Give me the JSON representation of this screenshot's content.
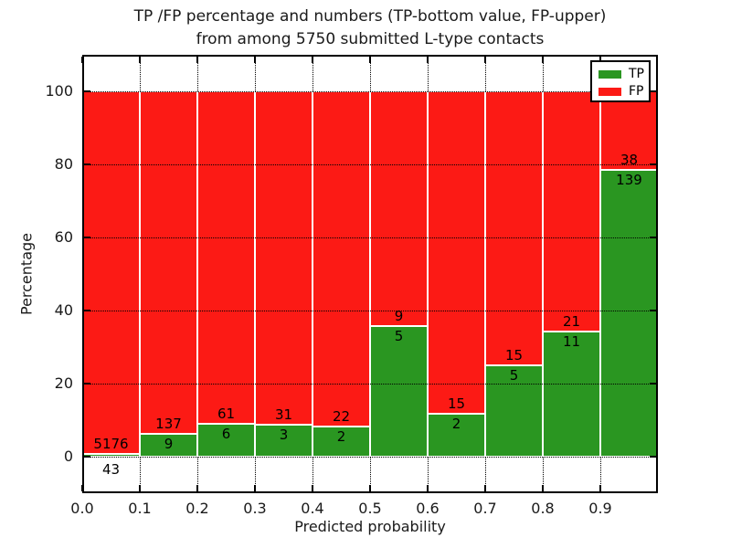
{
  "title": {
    "line1": "TP /FP percentage and numbers (TP-bottom value, FP-upper)",
    "line2": "from among 5750 submitted L-type contacts"
  },
  "axes": {
    "xlabel": "Predicted probability",
    "ylabel": "Percentage",
    "xtick_labels": [
      "0.0",
      "0.1",
      "0.2",
      "0.3",
      "0.4",
      "0.5",
      "0.6",
      "0.7",
      "0.8",
      "0.9"
    ],
    "xtick_values": [
      0.0,
      0.1,
      0.2,
      0.3,
      0.4,
      0.5,
      0.6,
      0.7,
      0.8,
      0.9
    ],
    "ytick_labels": [
      "0",
      "20",
      "40",
      "60",
      "80",
      "100"
    ],
    "ytick_values": [
      0,
      20,
      40,
      60,
      80,
      100
    ],
    "xlim": [
      0.0,
      1.0
    ],
    "ylim": [
      -10,
      110
    ],
    "grid": "dotted"
  },
  "legend": {
    "position": "upper-right",
    "items": [
      {
        "label": "TP",
        "color": "#2a9621"
      },
      {
        "label": "FP",
        "color": "#fc1a15"
      }
    ]
  },
  "colors": {
    "tp_green": "#2a9621",
    "fp_red": "#fc1a15",
    "bar_edge": "#ffffff",
    "text": "#000000"
  },
  "chart_data": {
    "type": "bar",
    "stacked": true,
    "normalized_to_percent": true,
    "title": "TP /FP percentage and numbers (TP-bottom value, FP-upper) from among 5750 submitted L-type contacts",
    "xlabel": "Predicted probability",
    "ylabel": "Percentage",
    "xlim": [
      0.0,
      1.0
    ],
    "ylim": [
      -10,
      110
    ],
    "total_submitted": 5750,
    "bin_width": 0.1,
    "categories": [
      "0.0-0.1",
      "0.1-0.2",
      "0.2-0.3",
      "0.3-0.4",
      "0.4-0.5",
      "0.5-0.6",
      "0.6-0.7",
      "0.7-0.8",
      "0.8-0.9",
      "0.9-1.0"
    ],
    "series": [
      {
        "name": "TP",
        "color": "#2a9621",
        "values": [
          43,
          9,
          6,
          3,
          2,
          5,
          2,
          5,
          11,
          139
        ]
      },
      {
        "name": "FP",
        "color": "#fc1a15",
        "values": [
          5176,
          137,
          61,
          31,
          22,
          9,
          15,
          15,
          21,
          38
        ]
      }
    ],
    "bins": [
      {
        "x_start": 0.0,
        "x_end": 0.1,
        "tp": 43,
        "fp": 5176,
        "tp_percent": 0.82
      },
      {
        "x_start": 0.1,
        "x_end": 0.2,
        "tp": 9,
        "fp": 137,
        "tp_percent": 6.16
      },
      {
        "x_start": 0.2,
        "x_end": 0.3,
        "tp": 6,
        "fp": 61,
        "tp_percent": 8.96
      },
      {
        "x_start": 0.3,
        "x_end": 0.4,
        "tp": 3,
        "fp": 31,
        "tp_percent": 8.82
      },
      {
        "x_start": 0.4,
        "x_end": 0.5,
        "tp": 2,
        "fp": 22,
        "tp_percent": 8.33
      },
      {
        "x_start": 0.5,
        "x_end": 0.6,
        "tp": 5,
        "fp": 9,
        "tp_percent": 35.71
      },
      {
        "x_start": 0.6,
        "x_end": 0.7,
        "tp": 2,
        "fp": 15,
        "tp_percent": 11.76
      },
      {
        "x_start": 0.7,
        "x_end": 0.8,
        "tp": 5,
        "fp": 15,
        "tp_percent": 25.0
      },
      {
        "x_start": 0.8,
        "x_end": 0.9,
        "tp": 11,
        "fp": 21,
        "tp_percent": 34.38
      },
      {
        "x_start": 0.9,
        "x_end": 1.0,
        "tp": 139,
        "fp": 38,
        "tp_percent": 78.53
      }
    ]
  }
}
